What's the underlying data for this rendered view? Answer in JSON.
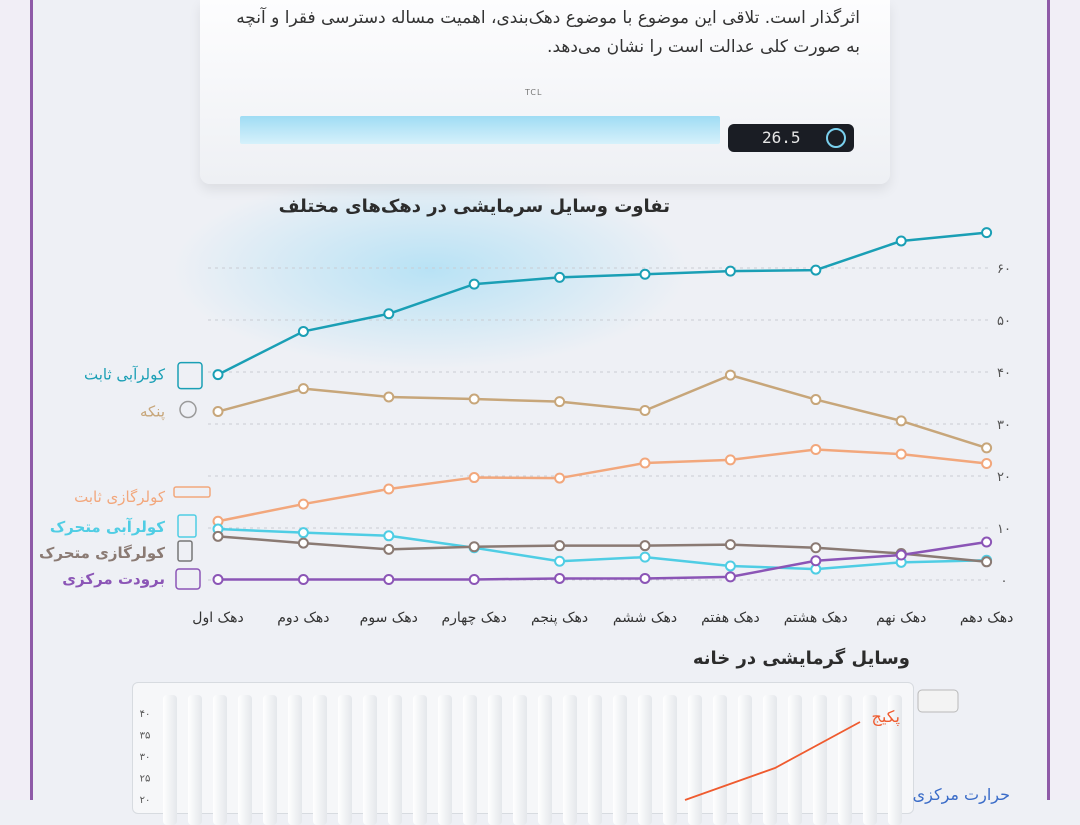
{
  "header_text": "اثرگذار است. تلاقی این موضوع با موضوع دهک‌بندی، اهمیت مساله دسترسی فقرا و آنچه به صورت کلی عدالت است را نشان می‌دهد.",
  "ac": {
    "brand": "TCL",
    "display": "26.5"
  },
  "chart_data": [
    {
      "type": "line",
      "title": "تفاوت وسایل سرمایشی در دهک‌های مختلف",
      "categories": [
        "دهک اول",
        "دهک دوم",
        "دهک سوم",
        "دهک چهارم",
        "دهک پنجم",
        "دهک ششم",
        "دهک هفتم",
        "دهک هشتم",
        "دهک نهم",
        "دهک دهم"
      ],
      "ylim": [
        0,
        70
      ],
      "yticks": [
        "۰",
        "۱۰",
        "۲۰",
        "۳۰",
        "۴۰",
        "۵۰",
        "۶۰"
      ],
      "grid": true,
      "series": [
        {
          "name": "کولرآبی ثابت",
          "color": "#1a9fb5",
          "icon": "grid-cooler-icon",
          "values": [
            39.5,
            47.8,
            51.2,
            56.9,
            58.2,
            58.8,
            59.4,
            59.6,
            65.2,
            66.8
          ]
        },
        {
          "name": "پنکه",
          "color": "#c7a67a",
          "icon": "fan-icon",
          "values": [
            32.4,
            36.8,
            35.2,
            34.8,
            34.3,
            32.6,
            39.4,
            34.7,
            30.6,
            25.4
          ]
        },
        {
          "name": "کولرگازی ثابت",
          "color": "#f2a77c",
          "icon": "split-ac-icon",
          "values": [
            11.3,
            14.6,
            17.5,
            19.7,
            19.6,
            22.5,
            23.1,
            25.1,
            24.2,
            22.4
          ]
        },
        {
          "name": "کولرآبی متحرک",
          "color": "#4fcde4",
          "icon": "portable-cooler-icon",
          "values": [
            9.8,
            9.1,
            8.5,
            6.2,
            3.6,
            4.4,
            2.7,
            2.1,
            3.4,
            3.8
          ]
        },
        {
          "name": "کولرگازی متحرک",
          "color": "#8a7a73",
          "icon": "portable-ac-icon",
          "values": [
            8.4,
            7.1,
            5.9,
            6.4,
            6.6,
            6.6,
            6.8,
            6.2,
            5.1,
            3.5
          ]
        },
        {
          "name": "برودت مرکزی",
          "color": "#8b55b6",
          "icon": "central-cooling-icon",
          "values": [
            0.1,
            0.1,
            0.1,
            0.1,
            0.3,
            0.3,
            0.6,
            3.7,
            4.8,
            7.3
          ]
        }
      ]
    },
    {
      "type": "line",
      "title": "وسایل گرمایشی در خانه",
      "yticks": [
        "۲۰",
        "۲۵",
        "۳۰",
        "۳۵",
        "۴۰"
      ],
      "series": [
        {
          "name": "پکیج",
          "color": "#ef5b2f"
        },
        {
          "name": "حرارت مرکزی",
          "color": "#3a6cc8"
        }
      ]
    }
  ]
}
